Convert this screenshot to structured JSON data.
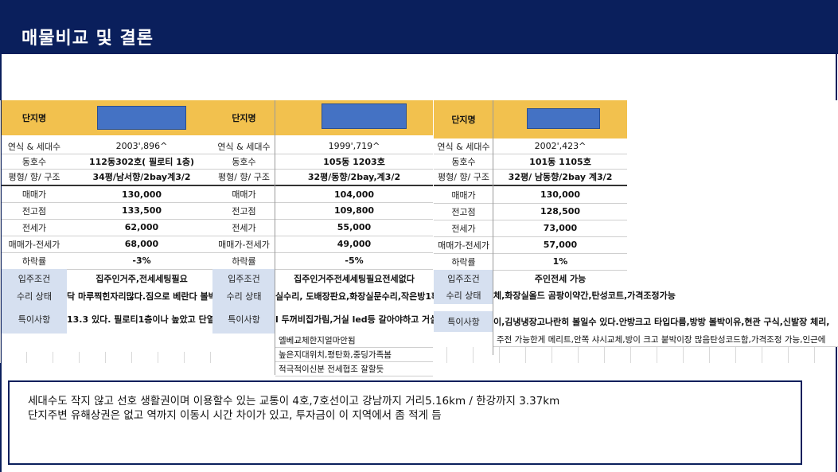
{
  "header": {
    "title": "매물비교 및 결론"
  },
  "row_labels": [
    "연식 & 세대수",
    "동호수",
    "평형/ 향/ 구조",
    "매매가",
    "전고점",
    "전세가",
    "매매가-전세가",
    "하락률",
    "입주조건",
    "수리 상태",
    "특이사항"
  ],
  "complex_label": "단지명",
  "complexes": [
    {
      "year_units": "2003',896^",
      "unit": "112동302호( 필로티 1층)",
      "type": "34평/남서향/2bay계3/2",
      "sale_price": "130,000",
      "peak_price": "133,500",
      "jeonse_price": "62,000",
      "gap": "68,000",
      "decline_rate": "-3%",
      "move_in": "집주인거주,전세세팅필요",
      "repair": "닥 마루찍힌자리많다.짐으로 베란다 볼박",
      "notes": "13.3 있다. 필로티1층이나 높았고 단열이"
    },
    {
      "year_units": "1999',719^",
      "unit": "105동 1203호",
      "type": "32평/동향/2bay,계3/2",
      "sale_price": "104,000",
      "peak_price": "109,800",
      "jeonse_price": "55,000",
      "gap": "49,000",
      "decline_rate": "-5%",
      "move_in": "집주인거주전세세팅필요전세없다",
      "repair": "실수리, 도배장판요,화장실문수리,작은방1확장",
      "notes": "l 두꺼비집가림,거실 led등 갈아야하고 거실",
      "extra": [
        "엘베교체한지얼마안됨",
        "높은지대위치,평탄화,중딩가족봄",
        "적극적이신분 전세협조 잘할듯"
      ]
    },
    {
      "year_units": "2002',423^",
      "unit": "101동 1105호",
      "type": "32평/ 남동향/2bay 계3/2",
      "sale_price": "130,000",
      "peak_price": "128,500",
      "jeonse_price": "73,000",
      "gap": "57,000",
      "decline_rate": "1%",
      "move_in": "주인전세 가능",
      "repair": "체,화장실올드 곰팡이약간,탄성코트,가격조정가능",
      "notes": "이,김냉냉장고나란히 볼일수 있다.안방크고 타입다름,방방 볼박이유,현관 구식,신발장 체리,",
      "notes2": "주전 가능한게 메리트,안쪽 샤시교체,방이 크고 붙박이장 많음탄성코드함,가격조정 가능,인근에"
    }
  ],
  "conclusion": {
    "line1": "세대수도 작지 않고 선호 생활권이며 이용할수 있는 교통이 4호,7호선이고 강남까지 거리5.16km  / 한강까지 3.37km",
    "line2": "단지주변 유해상권은 없고  역까지 이동시 시간 차이가 있고, 투자금이 이 지역에서 좀 적게 듬"
  }
}
